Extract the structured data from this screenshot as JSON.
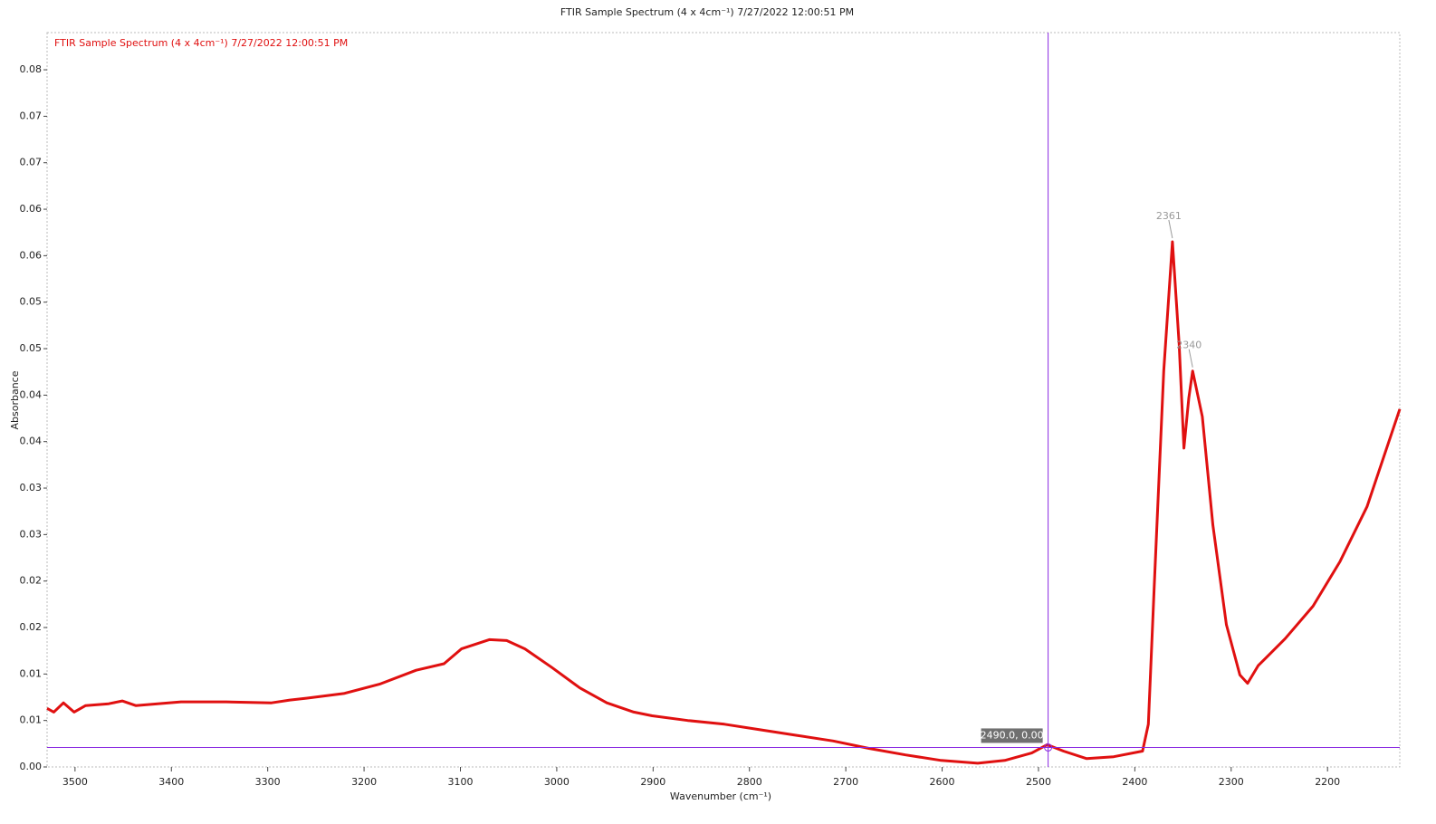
{
  "chart_data": {
    "type": "line",
    "title": "FTIR Sample Spectrum (4 x 4cm⁻¹) 7/27/2022 12:00:51 PM",
    "x_label": "Wavenumber (cm⁻¹)",
    "y_label": "Absorbance",
    "xlim": [
      3529,
      2125
    ],
    "ylim": [
      0,
      0.079
    ],
    "xticks": [
      3500,
      3400,
      3300,
      3200,
      3100,
      3000,
      2900,
      2800,
      2700,
      2600,
      2500,
      2400,
      2300,
      2200
    ],
    "yticks": [
      {
        "value": 0,
        "label": "0.00"
      },
      {
        "value": 0.005,
        "label": "0.01"
      },
      {
        "value": 0.01,
        "label": "0.01"
      },
      {
        "value": 0.015,
        "label": "0.02"
      },
      {
        "value": 0.02,
        "label": "0.02"
      },
      {
        "value": 0.025,
        "label": "0.03"
      },
      {
        "value": 0.03,
        "label": "0.03"
      },
      {
        "value": 0.035,
        "label": "0.04"
      },
      {
        "value": 0.04,
        "label": "0.04"
      },
      {
        "value": 0.045,
        "label": "0.05"
      },
      {
        "value": 0.05,
        "label": "0.05"
      },
      {
        "value": 0.055,
        "label": "0.06"
      },
      {
        "value": 0.06,
        "label": "0.06"
      },
      {
        "value": 0.065,
        "label": "0.07"
      },
      {
        "value": 0.07,
        "label": "0.07"
      },
      {
        "value": 0.075,
        "label": "0.08"
      }
    ],
    "x": [
      3529,
      3522,
      3512,
      3501,
      3489,
      3465,
      3451,
      3437,
      3390,
      3343,
      3296,
      3277,
      3259,
      3221,
      3184,
      3146,
      3117,
      3099,
      3070,
      3052,
      3033,
      3005,
      2976,
      2948,
      2920,
      2901,
      2864,
      2826,
      2789,
      2751,
      2713,
      2676,
      2638,
      2601,
      2563,
      2535,
      2507,
      2491,
      2474,
      2450,
      2422,
      2392,
      2386,
      2380,
      2370,
      2361,
      2354,
      2349,
      2344,
      2340,
      2330,
      2319,
      2305,
      2291,
      2283,
      2272,
      2244,
      2215,
      2187,
      2159,
      2125
    ],
    "series": [
      {
        "name": "FTIR Sample Spectrum (4 x 4cm⁻¹) 7/27/2022 12:00:51 PM",
        "color": "#e01010",
        "values": [
          0.0063,
          0.0059,
          0.0069,
          0.0059,
          0.0066,
          0.0068,
          0.0071,
          0.0066,
          0.007,
          0.007,
          0.0069,
          0.0072,
          0.0074,
          0.0079,
          0.0089,
          0.0104,
          0.0111,
          0.0127,
          0.0137,
          0.0136,
          0.0127,
          0.0107,
          0.0085,
          0.0069,
          0.0059,
          0.0055,
          0.005,
          0.0046,
          0.004,
          0.0034,
          0.0028,
          0.002,
          0.0013,
          0.0007,
          0.0004,
          0.0007,
          0.0015,
          0.0024,
          0.0017,
          0.0009,
          0.0011,
          0.0017,
          0.0046,
          0.0192,
          0.0426,
          0.0565,
          0.0455,
          0.0343,
          0.0397,
          0.0426,
          0.0377,
          0.026,
          0.0153,
          0.0099,
          0.009,
          0.0109,
          0.0138,
          0.0173,
          0.0221,
          0.028,
          0.0385
        ]
      }
    ],
    "peaks": [
      {
        "label": "2361",
        "x": 2361,
        "y": 0.0565
      },
      {
        "label": "2340",
        "x": 2340,
        "y": 0.0426
      }
    ],
    "cursor": {
      "x": 2490,
      "y": 0.0021,
      "label": "(2490.0, 0.00)"
    }
  }
}
